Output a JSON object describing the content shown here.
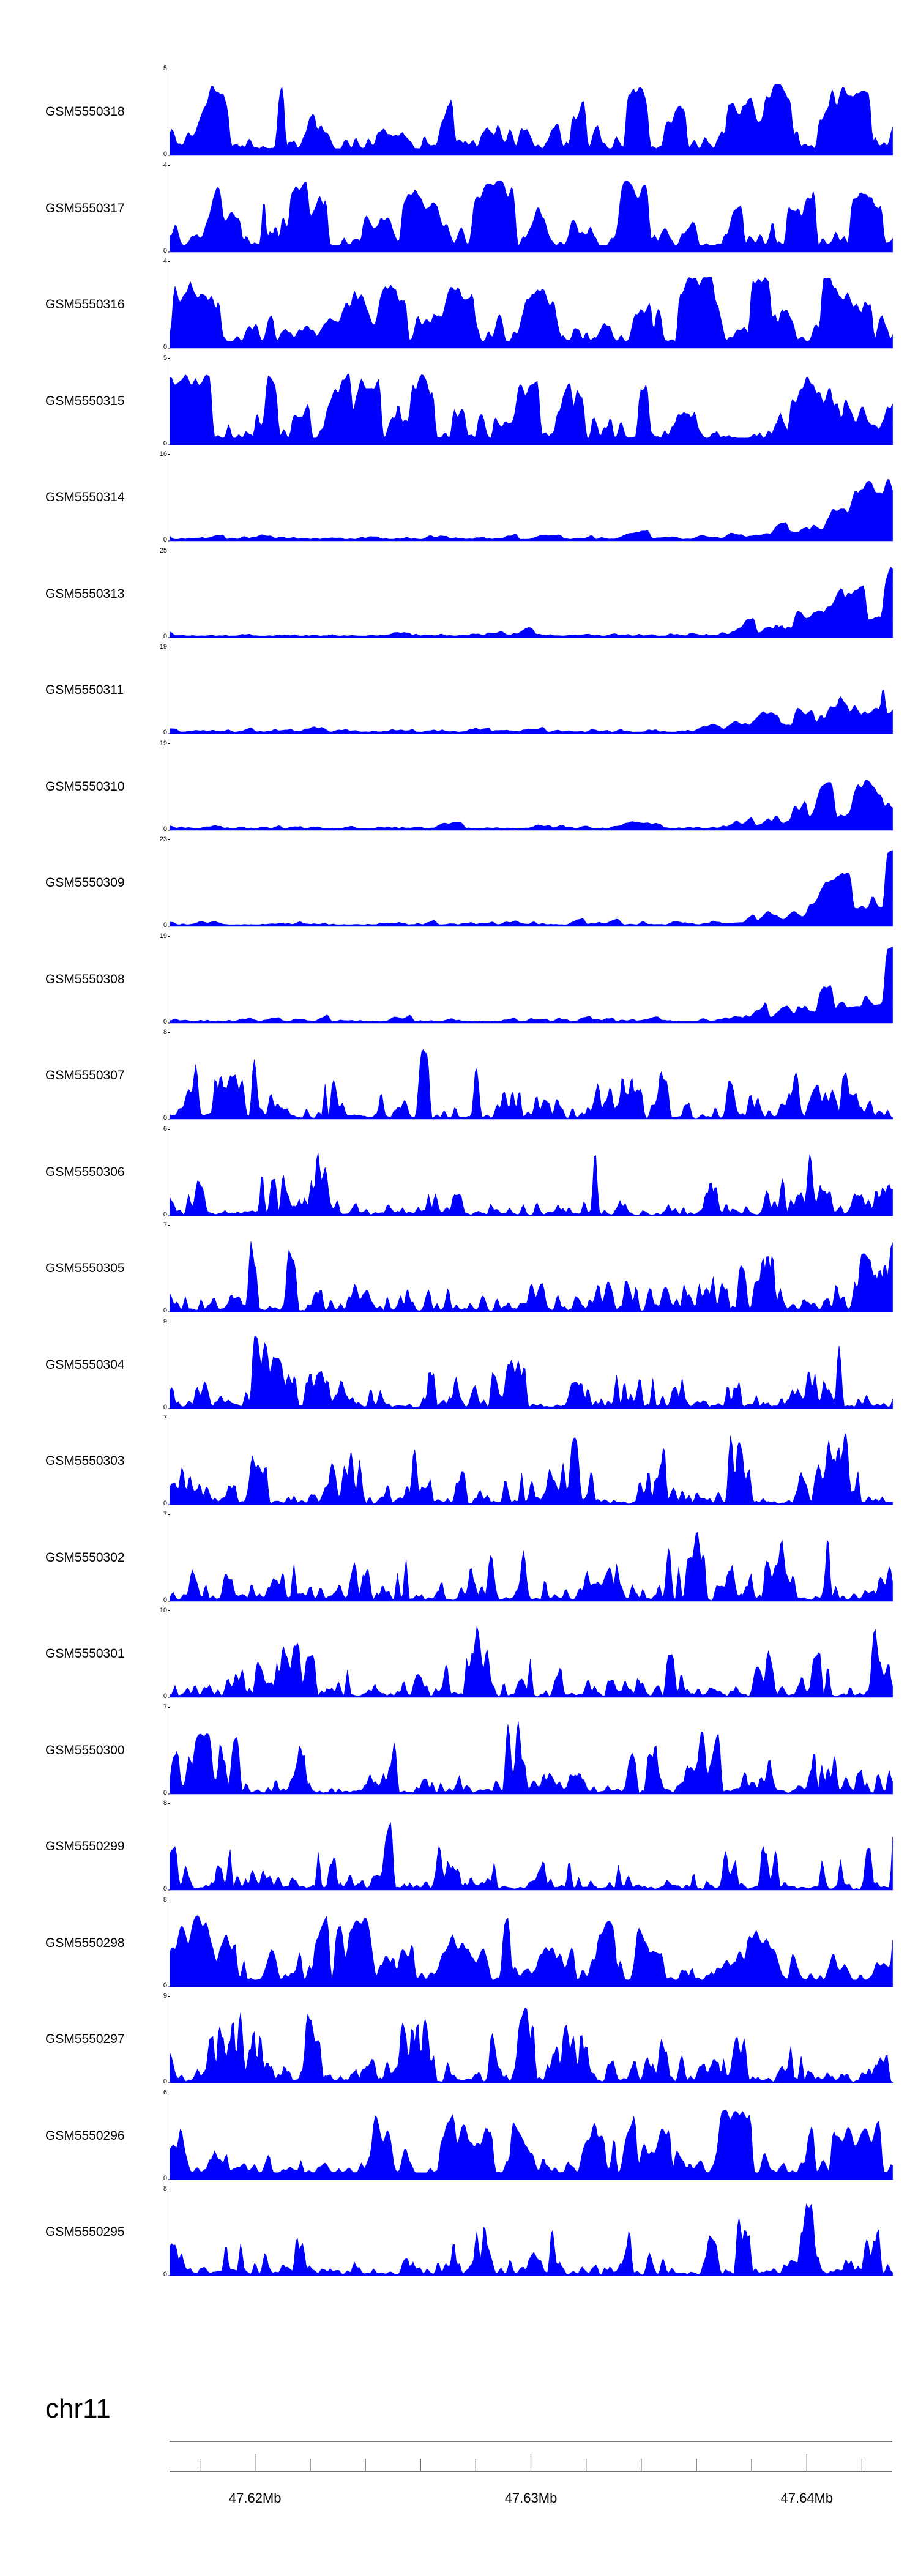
{
  "chart_data": {
    "type": "area",
    "color": "#0000ff",
    "genome_axis": {
      "chromosome": "chr11",
      "range_mb": [
        47.6169,
        47.6431
      ],
      "major_ticks": [
        {
          "value": 47.62,
          "label": "47.62Mb"
        },
        {
          "value": 47.63,
          "label": "47.63Mb"
        },
        {
          "value": 47.64,
          "label": "47.64Mb"
        }
      ],
      "minor_tick_step_mb": 0.002
    },
    "tracks": [
      {
        "name": "GSM5550318",
        "ymax": "5",
        "ymin": "0",
        "max": 5,
        "seed": 318,
        "profile": "flat"
      },
      {
        "name": "GSM5550317",
        "ymax": "4",
        "ymin": "0",
        "max": 4,
        "seed": 317,
        "profile": "flat"
      },
      {
        "name": "GSM5550316",
        "ymax": "4",
        "ymin": "0",
        "max": 4,
        "seed": 316,
        "profile": "flat"
      },
      {
        "name": "GSM5550315",
        "ymax": "5",
        "ymin": "0",
        "max": 5,
        "seed": 315,
        "profile": "flat"
      },
      {
        "name": "GSM5550314",
        "ymax": "16",
        "ymin": "0",
        "max": 16,
        "seed": 314,
        "profile": "rising"
      },
      {
        "name": "GSM5550313",
        "ymax": "25",
        "ymin": "0",
        "max": 25,
        "seed": 313,
        "profile": "rising"
      },
      {
        "name": "GSM5550311",
        "ymax": "19",
        "ymin": "0",
        "max": 19,
        "seed": 311,
        "profile": "rising"
      },
      {
        "name": "GSM5550310",
        "ymax": "19",
        "ymin": "0",
        "max": 19,
        "seed": 310,
        "profile": "rising"
      },
      {
        "name": "GSM5550309",
        "ymax": "23",
        "ymin": "0",
        "max": 23,
        "seed": 309,
        "profile": "rising"
      },
      {
        "name": "GSM5550308",
        "ymax": "19",
        "ymin": "0",
        "max": 19,
        "seed": 308,
        "profile": "rising"
      },
      {
        "name": "GSM5550307",
        "ymax": "8",
        "ymin": "0",
        "max": 8,
        "seed": 307,
        "profile": "sparse"
      },
      {
        "name": "GSM5550306",
        "ymax": "6",
        "ymin": "0",
        "max": 6,
        "seed": 306,
        "profile": "sparse"
      },
      {
        "name": "GSM5550305",
        "ymax": "7",
        "ymin": "0",
        "max": 7,
        "seed": 305,
        "profile": "sparse"
      },
      {
        "name": "GSM5550304",
        "ymax": "9",
        "ymin": "0",
        "max": 9,
        "seed": 304,
        "profile": "sparse"
      },
      {
        "name": "GSM5550303",
        "ymax": "7",
        "ymin": "0",
        "max": 7,
        "seed": 303,
        "profile": "sparse"
      },
      {
        "name": "GSM5550302",
        "ymax": "7",
        "ymin": "0",
        "max": 7,
        "seed": 302,
        "profile": "sparse"
      },
      {
        "name": "GSM5550301",
        "ymax": "10",
        "ymin": "0",
        "max": 10,
        "seed": 301,
        "profile": "sparse"
      },
      {
        "name": "GSM5550300",
        "ymax": "7",
        "ymin": "0",
        "max": 7,
        "seed": 300,
        "profile": "sparse"
      },
      {
        "name": "GSM5550299",
        "ymax": "8",
        "ymin": "0",
        "max": 8,
        "seed": 299,
        "profile": "sparse"
      },
      {
        "name": "GSM5550298",
        "ymax": "8",
        "ymin": "0",
        "max": 8,
        "seed": 298,
        "profile": "flat"
      },
      {
        "name": "GSM5550297",
        "ymax": "9",
        "ymin": "0",
        "max": 9,
        "seed": 297,
        "profile": "sparse"
      },
      {
        "name": "GSM5550296",
        "ymax": "6",
        "ymin": "0",
        "max": 6,
        "seed": 296,
        "profile": "flat"
      },
      {
        "name": "GSM5550295",
        "ymax": "8",
        "ymin": "0",
        "max": 8,
        "seed": 295,
        "profile": "sparse"
      }
    ]
  }
}
